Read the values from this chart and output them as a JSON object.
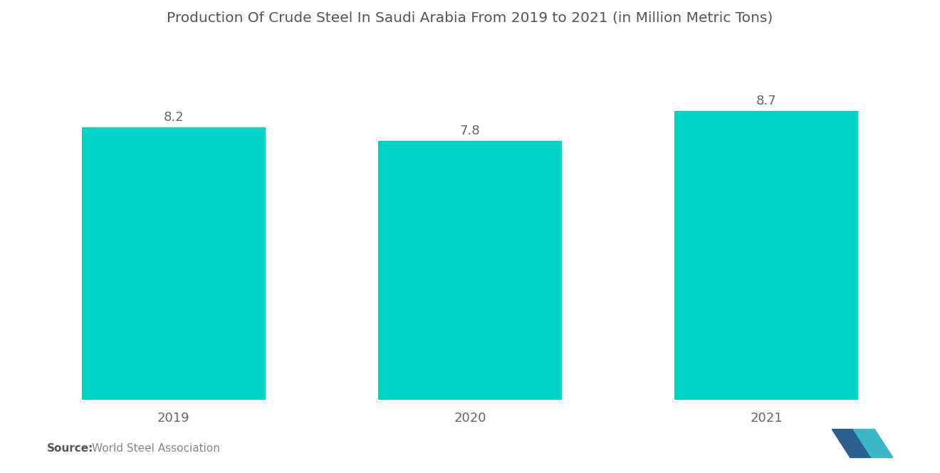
{
  "title": "Production Of Crude Steel In Saudi Arabia From 2019 to 2021 (in Million Metric Tons)",
  "categories": [
    "2019",
    "2020",
    "2021"
  ],
  "values": [
    8.2,
    7.8,
    8.7
  ],
  "bar_color": "#00D4C8",
  "background_color": "#ffffff",
  "title_fontsize": 14.5,
  "label_fontsize": 13,
  "value_fontsize": 13,
  "source_bold": "Source:",
  "source_normal": "  World Steel Association",
  "ylim": [
    0,
    10.5
  ],
  "bar_width": 0.62,
  "title_color": "#555555",
  "tick_color": "#666666",
  "value_color": "#666666",
  "source_bold_color": "#555555",
  "source_normal_color": "#888888"
}
